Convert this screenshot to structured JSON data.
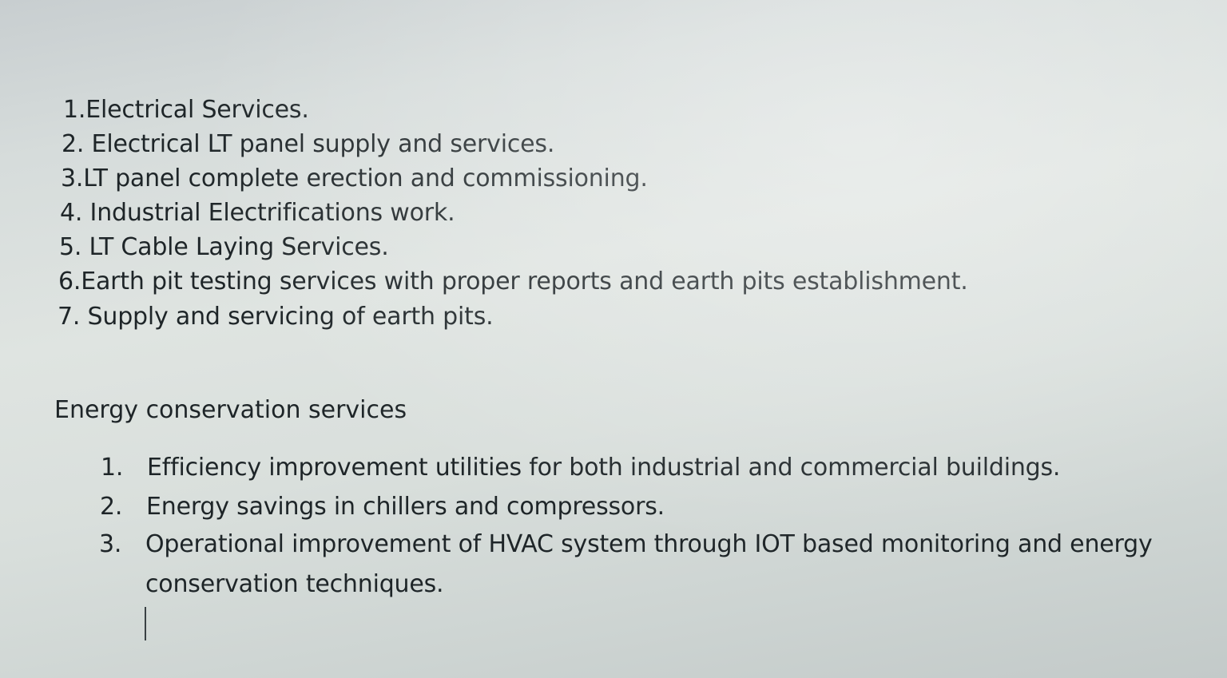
{
  "services_list": [
    "1.Electrical Services.",
    "2. Electrical LT panel supply and services.",
    "3.LT panel complete erection and commissioning.",
    "4. Industrial Electrifications work.",
    "5. LT Cable Laying Services.",
    "6.Earth pit testing services with proper reports and earth pits establishment.",
    "7. Supply and servicing of earth pits."
  ],
  "energy_section": {
    "heading": "Energy conservation services",
    "items": [
      {
        "number": "1.",
        "text": "Efficiency improvement utilities for both industrial and commercial buildings."
      },
      {
        "number": "2.",
        "text": "Energy savings in chillers and compressors."
      },
      {
        "number": "3.",
        "text": "Operational improvement of HVAC system through IOT based monitoring and energy",
        "continuation": "conservation techniques."
      }
    ]
  }
}
